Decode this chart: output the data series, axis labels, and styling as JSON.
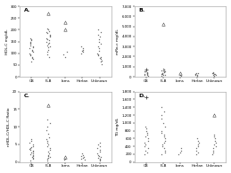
{
  "panels": [
    {
      "label": "A.",
      "ylabel": "HDL-C mg/dL",
      "ylim": [
        0,
        300
      ],
      "yticks": [
        0,
        50,
        100,
        150,
        200,
        250,
        300
      ],
      "yticklabels": [
        "0",
        "50",
        "100",
        "150",
        "200",
        "250",
        "300"
      ],
      "groups": {
        "CB": {
          "dots": [
            65,
            75,
            80,
            85,
            90,
            95,
            100,
            105,
            110,
            115,
            120,
            125,
            130,
            135,
            140,
            145,
            150,
            155,
            160,
            165
          ],
          "triangles": [],
          "crosses": []
        },
        "FLB": {
          "dots": [
            85,
            95,
            105,
            115,
            125,
            130,
            135,
            140,
            145,
            150,
            155,
            160,
            165,
            170,
            175,
            180,
            185,
            190,
            195,
            200,
            205
          ],
          "triangles": [
            270
          ],
          "crosses": []
        },
        "Iams": {
          "dots": [
            85,
            95,
            105
          ],
          "triangles": [
            200,
            230
          ],
          "crosses": []
        },
        "Harlan": {
          "dots": [
            100,
            105,
            110,
            115,
            120,
            130
          ],
          "triangles": [],
          "crosses": []
        },
        "Unknown": {
          "dots": [
            55,
            65,
            70,
            75,
            80,
            85,
            90,
            95,
            100,
            110,
            120,
            130,
            140,
            150,
            160,
            170,
            180,
            190,
            200
          ],
          "triangles": [],
          "crosses": []
        }
      }
    },
    {
      "label": "B.",
      "ylabel": "mRo-c mg/dL",
      "ylim": [
        0,
        7000
      ],
      "yticks": [
        0,
        1000,
        2000,
        3000,
        4000,
        5000,
        6000,
        7000
      ],
      "yticklabels": [
        "0",
        "1,000",
        "2,000",
        "3,000",
        "4,000",
        "5,000",
        "6,000",
        "7,000"
      ],
      "groups": {
        "CB": {
          "dots": [
            100,
            150,
            200,
            250,
            300,
            350,
            400,
            450,
            500,
            550
          ],
          "triangles": [],
          "crosses": [
            700
          ]
        },
        "FLB": {
          "dots": [
            100,
            150,
            200,
            250,
            300,
            350,
            400,
            450,
            500,
            550,
            600,
            650,
            700,
            750,
            800
          ],
          "triangles": [
            5200
          ],
          "crosses": []
        },
        "Iams": {
          "dots": [
            100,
            150
          ],
          "triangles": [
            400
          ],
          "crosses": []
        },
        "Harlan": {
          "dots": [
            100,
            150,
            200,
            250,
            300,
            350,
            400
          ],
          "triangles": [],
          "crosses": []
        },
        "Unknown": {
          "dots": [
            100,
            150,
            200,
            250,
            300,
            350,
            400,
            450
          ],
          "triangles": [],
          "crosses": []
        }
      }
    },
    {
      "label": "C.",
      "ylabel": "nHDL-C/HDL-C Ratio",
      "ylim": [
        0,
        20
      ],
      "yticks": [
        0,
        5,
        10,
        15,
        20
      ],
      "yticklabels": [
        "0",
        "5",
        "10",
        "15",
        "20"
      ],
      "groups": {
        "CB": {
          "dots": [
            0.5,
            1,
            1.2,
            1.5,
            1.8,
            2,
            2.2,
            2.5,
            2.8,
            3,
            3.2,
            3.5,
            3.8,
            4,
            4.2,
            4.5,
            5,
            5.5,
            6,
            6.5
          ],
          "triangles": [],
          "crosses": []
        },
        "FLB": {
          "dots": [
            0.5,
            1,
            1.2,
            1.5,
            1.8,
            2,
            2.5,
            3,
            3.5,
            4,
            4.5,
            5,
            5.5,
            6,
            6.5,
            7,
            8,
            9,
            10,
            11,
            12
          ],
          "triangles": [
            16
          ],
          "crosses": []
        },
        "Iams": {
          "dots": [
            0.8,
            1
          ],
          "triangles": [
            1.5
          ],
          "crosses": []
        },
        "Harlan": {
          "dots": [
            0.8,
            1,
            1.2,
            1.5,
            1.8,
            2,
            2.5
          ],
          "triangles": [],
          "crosses": []
        },
        "Unknown": {
          "dots": [
            0.5,
            0.8,
            1,
            1.2,
            1.5,
            1.8,
            2,
            2.5,
            3,
            3.5,
            4,
            4.5,
            5,
            5.5
          ],
          "triangles": [],
          "crosses": []
        }
      }
    },
    {
      "label": "D.",
      "ylabel": "TG mg/dL",
      "ylim": [
        0,
        1800
      ],
      "yticks": [
        0,
        200,
        400,
        600,
        800,
        1000,
        1200,
        1400,
        1600,
        1800
      ],
      "yticklabels": [
        "0",
        "200",
        "400",
        "600",
        "800",
        "1,000",
        "1,200",
        "1,400",
        "1,600",
        "1,800"
      ],
      "groups": {
        "CB": {
          "dots": [
            200,
            250,
            300,
            350,
            400,
            450,
            500,
            550,
            600,
            650,
            700,
            750,
            800,
            850,
            900
          ],
          "triangles": [],
          "crosses": [
            1650
          ]
        },
        "FLB": {
          "dots": [
            200,
            250,
            300,
            350,
            400,
            450,
            500,
            550,
            600,
            650,
            700,
            750,
            800,
            900,
            1000,
            1100,
            1200,
            1300,
            1400
          ],
          "triangles": [],
          "crosses": []
        },
        "Iams": {
          "dots": [
            200,
            250,
            300,
            350
          ],
          "triangles": [],
          "crosses": []
        },
        "Harlan": {
          "dots": [
            200,
            250,
            300,
            350,
            400,
            450,
            500,
            550,
            600
          ],
          "triangles": [],
          "crosses": []
        },
        "Unknown": {
          "dots": [
            200,
            250,
            300,
            350,
            400,
            450,
            500,
            550,
            600,
            650,
            700
          ],
          "triangles": [
            1200
          ],
          "crosses": []
        }
      }
    }
  ],
  "categories": [
    "CB",
    "FLB",
    "Iams",
    "Harlan",
    "Unknown"
  ],
  "dot_color": "#666666",
  "triangle_color": "#444444",
  "cross_color": "#444444",
  "bg_color": "#ffffff",
  "panel_bg": "#ffffff"
}
